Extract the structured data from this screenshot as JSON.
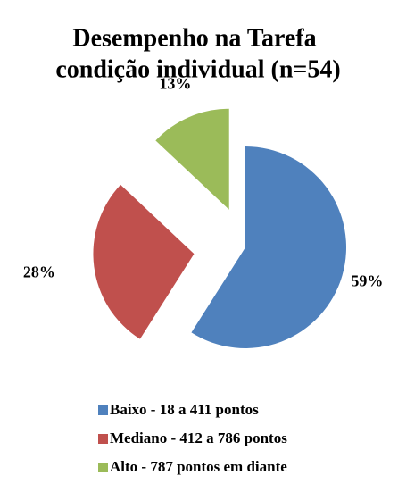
{
  "chart_data": {
    "type": "pie",
    "title": "Desempenho na Tarefa",
    "subtitle": "condição individual (n=54)",
    "categories": [
      "Baixo - 18 a 411 pontos",
      "Mediano - 412 a 786 pontos",
      "Alto - 787 pontos em diante"
    ],
    "values": [
      59,
      28,
      13
    ],
    "value_labels": [
      "59%",
      "28%",
      "13%"
    ],
    "colors": [
      "#4f81bd",
      "#c0504d",
      "#9bbb59"
    ],
    "legend": "bottom"
  }
}
